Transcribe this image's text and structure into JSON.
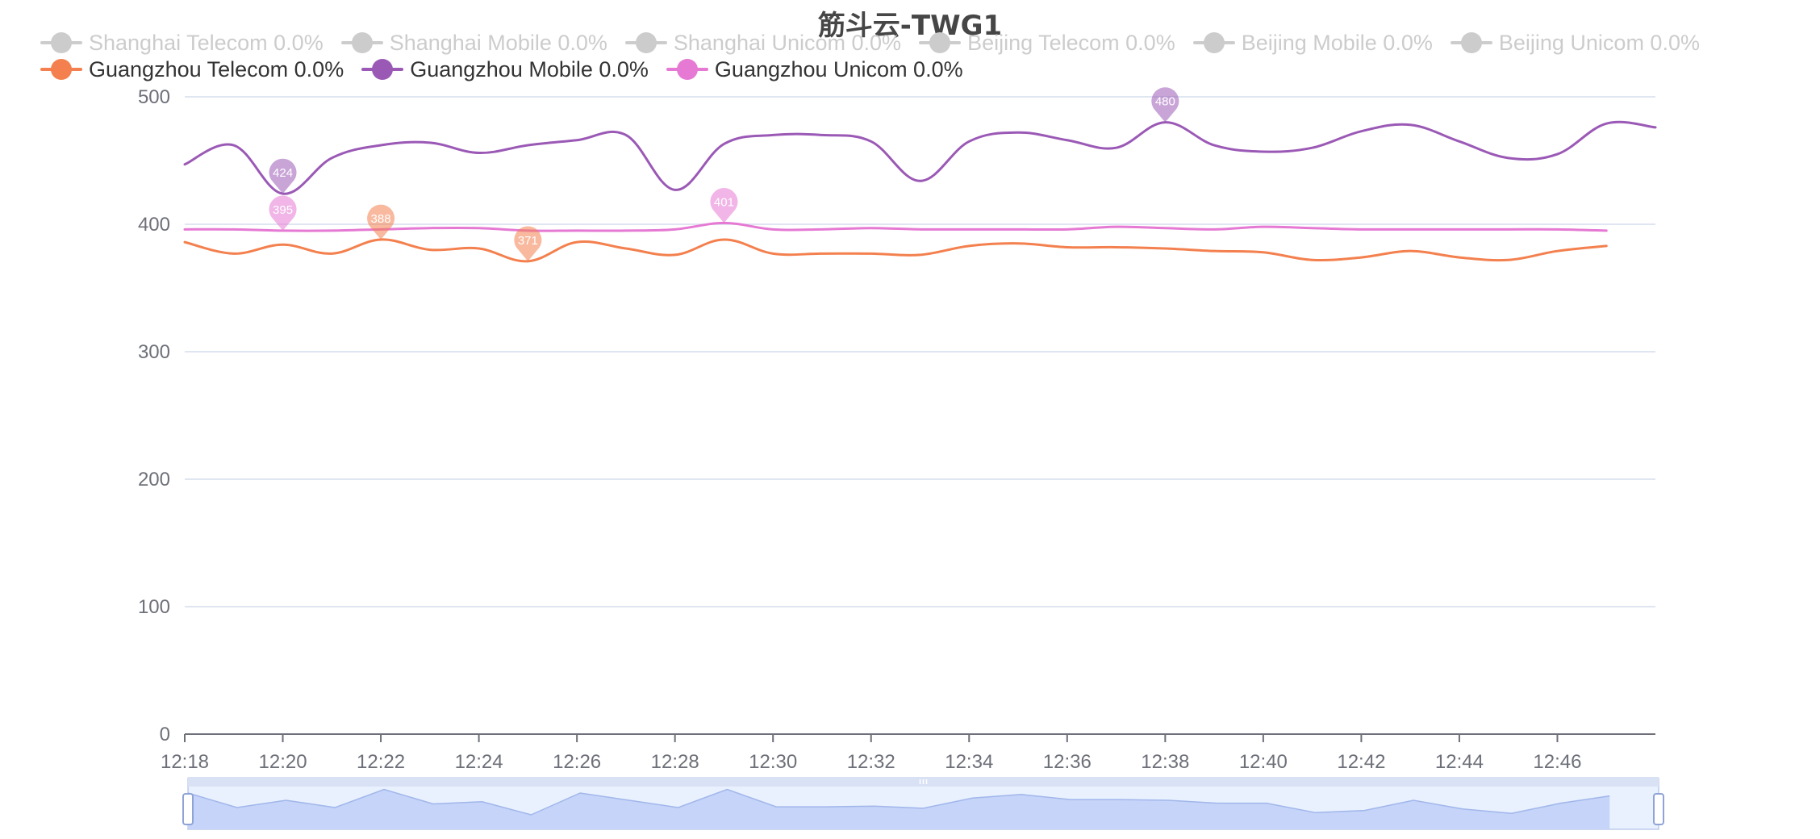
{
  "chart_data": {
    "type": "line",
    "title": "筋斗云-TWG1",
    "x": [
      "12:18",
      "12:19",
      "12:20",
      "12:21",
      "12:22",
      "12:23",
      "12:24",
      "12:25",
      "12:26",
      "12:27",
      "12:28",
      "12:29",
      "12:30",
      "12:31",
      "12:32",
      "12:33",
      "12:34",
      "12:35",
      "12:36",
      "12:37",
      "12:38",
      "12:39",
      "12:40",
      "12:41",
      "12:42",
      "12:43",
      "12:44",
      "12:45",
      "12:46",
      "12:47",
      "12:48"
    ],
    "x_ticks": [
      "12:18",
      "12:20",
      "12:22",
      "12:24",
      "12:26",
      "12:28",
      "12:30",
      "12:32",
      "12:34",
      "12:36",
      "12:38",
      "12:40",
      "12:42",
      "12:44",
      "12:46"
    ],
    "y_ticks": [
      "0",
      "100",
      "200",
      "300",
      "400",
      "500"
    ],
    "ylim": [
      0,
      500
    ],
    "grid": true,
    "legend_position": "top",
    "legend": [
      {
        "label": "Shanghai Telecom 0.0%",
        "color": "#cccccc",
        "active": false
      },
      {
        "label": "Shanghai Mobile 0.0%",
        "color": "#cccccc",
        "active": false
      },
      {
        "label": "Shanghai Unicom 0.0%",
        "color": "#cccccc",
        "active": false
      },
      {
        "label": "Beijing Telecom 0.0%",
        "color": "#cccccc",
        "active": false
      },
      {
        "label": "Beijing Mobile 0.0%",
        "color": "#cccccc",
        "active": false
      },
      {
        "label": "Beijing Unicom 0.0%",
        "color": "#cccccc",
        "active": false
      },
      {
        "label": "Guangzhou Telecom 0.0%",
        "color": "#f3804e",
        "active": true
      },
      {
        "label": "Guangzhou Mobile 0.0%",
        "color": "#9b59b6",
        "active": true
      },
      {
        "label": "Guangzhou Unicom 0.0%",
        "color": "#e579d3",
        "active": true
      }
    ],
    "series": [
      {
        "name": "Guangzhou Telecom 0.0%",
        "color": "#f3804e",
        "values": [
          386,
          377,
          384,
          377,
          388,
          380,
          381,
          371,
          386,
          381,
          376,
          388,
          377,
          377,
          377,
          376,
          383,
          385,
          382,
          382,
          381,
          379,
          378,
          372,
          374,
          379,
          374,
          372,
          379,
          383,
          null
        ],
        "markPoints": [
          {
            "x": "12:22",
            "value": 388,
            "label": "388"
          },
          {
            "x": "12:25",
            "value": 371,
            "label": "371"
          }
        ]
      },
      {
        "name": "Guangzhou Mobile 0.0%",
        "color": "#9b59b6",
        "values": [
          447,
          462,
          424,
          452,
          462,
          464,
          456,
          462,
          466,
          470,
          427,
          463,
          470,
          470,
          465,
          434,
          465,
          472,
          466,
          460,
          480,
          462,
          457,
          460,
          473,
          478,
          465,
          452,
          455,
          479,
          476
        ],
        "markPoints": [
          {
            "x": "12:38",
            "value": 480,
            "label": "480"
          },
          {
            "x": "12:20",
            "value": 424,
            "label": "424"
          }
        ]
      },
      {
        "name": "Guangzhou Unicom 0.0%",
        "color": "#e579d3",
        "values": [
          396,
          396,
          395,
          395,
          396,
          397,
          397,
          395,
          395,
          395,
          396,
          401,
          396,
          396,
          397,
          396,
          396,
          396,
          396,
          398,
          397,
          396,
          398,
          397,
          396,
          396,
          396,
          396,
          396,
          395,
          null
        ],
        "markPoints": [
          {
            "x": "12:29",
            "value": 401,
            "label": "401"
          },
          {
            "x": "12:20",
            "value": 395,
            "label": "395"
          }
        ]
      }
    ],
    "zoom_overview": [
      380,
      360,
      370,
      360,
      385,
      365,
      368,
      350,
      380,
      370,
      360,
      385,
      361,
      361,
      362,
      359,
      373,
      378,
      371,
      371,
      370,
      366,
      366,
      353,
      356,
      370,
      358,
      352,
      366,
      376,
      null
    ]
  }
}
